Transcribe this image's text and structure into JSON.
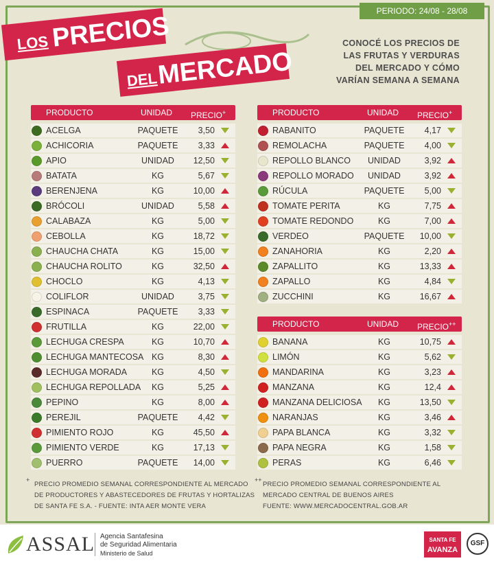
{
  "header": {
    "period": "PERIODO: 24/08 - 28/08",
    "title": [
      "LOS",
      "PRECIOS",
      "DEL",
      "MERCADO"
    ],
    "subtitle": [
      "CONOCÉ LOS PRECIOS DE",
      "LAS FRUTAS Y VERDURAS",
      "DEL MERCADO Y CÓMO",
      "VARÍAN SEMANA A SEMANA"
    ]
  },
  "tables": [
    {
      "columns": [
        "PRODUCTO",
        "UNIDAD",
        "PRECIO"
      ],
      "note_mark": "+",
      "rows": [
        {
          "product": "ACELGA",
          "unit": "PAQUETE",
          "price": "3,50",
          "trend": "down",
          "color": "#3d6b22"
        },
        {
          "product": "ACHICORIA",
          "unit": "PAQUETE",
          "price": "3,33",
          "trend": "up",
          "color": "#7bb03a"
        },
        {
          "product": "APIO",
          "unit": "UNIDAD",
          "price": "12,50",
          "trend": "down",
          "color": "#5a9a2a"
        },
        {
          "product": "BATATA",
          "unit": "KG",
          "price": "5,67",
          "trend": "down",
          "color": "#b87a78"
        },
        {
          "product": "BERENJENA",
          "unit": "KG",
          "price": "10,00",
          "trend": "up",
          "color": "#5b3a7e"
        },
        {
          "product": "BRÓCOLI",
          "unit": "UNIDAD",
          "price": "5,58",
          "trend": "up",
          "color": "#3a6a24"
        },
        {
          "product": "CALABAZA",
          "unit": "KG",
          "price": "5,00",
          "trend": "down",
          "color": "#e8a030"
        },
        {
          "product": "CEBOLLA",
          "unit": "KG",
          "price": "18,72",
          "trend": "down",
          "color": "#f0a070"
        },
        {
          "product": "CHAUCHA CHATA",
          "unit": "KG",
          "price": "15,00",
          "trend": "down",
          "color": "#8ab050"
        },
        {
          "product": "CHAUCHA ROLITO",
          "unit": "KG",
          "price": "32,50",
          "trend": "up",
          "color": "#8ab050"
        },
        {
          "product": "CHOCLO",
          "unit": "KG",
          "price": "4,13",
          "trend": "down",
          "color": "#e0c030"
        },
        {
          "product": "COLIFLOR",
          "unit": "UNIDAD",
          "price": "3,75",
          "trend": "down",
          "color": "#f7f3e6"
        },
        {
          "product": "ESPINACA",
          "unit": "PAQUETE",
          "price": "3,33",
          "trend": "down",
          "color": "#3a6a2a"
        },
        {
          "product": "FRUTILLA",
          "unit": "KG",
          "price": "22,00",
          "trend": "down",
          "color": "#d03030"
        },
        {
          "product": "LECHUGA CRESPA",
          "unit": "KG",
          "price": "10,70",
          "trend": "up",
          "color": "#5a9a3a"
        },
        {
          "product": "LECHUGA MANTECOSA",
          "unit": "KG",
          "price": "8,30",
          "trend": "up",
          "color": "#4e8e30"
        },
        {
          "product": "LECHUGA MORADA",
          "unit": "KG",
          "price": "4,50",
          "trend": "down",
          "color": "#5a2a2a"
        },
        {
          "product": "LECHUGA REPOLLADA",
          "unit": "KG",
          "price": "5,25",
          "trend": "up",
          "color": "#a0c060"
        },
        {
          "product": "PEPINO",
          "unit": "KG",
          "price": "8,00",
          "trend": "up",
          "color": "#4a8a3a"
        },
        {
          "product": "PEREJIL",
          "unit": "PAQUETE",
          "price": "4,42",
          "trend": "down",
          "color": "#3a7a2a"
        },
        {
          "product": "PIMIENTO ROJO",
          "unit": "KG",
          "price": "45,50",
          "trend": "up",
          "color": "#d03030"
        },
        {
          "product": "PIMIENTO VERDE",
          "unit": "KG",
          "price": "17,13",
          "trend": "down",
          "color": "#5a9a3a"
        },
        {
          "product": "PUERRO",
          "unit": "PAQUETE",
          "price": "14,00",
          "trend": "down",
          "color": "#a0c070"
        }
      ]
    },
    {
      "columns": [
        "PRODUCTO",
        "UNIDAD",
        "PRECIO"
      ],
      "note_mark": "+",
      "rows": [
        {
          "product": "RABANITO",
          "unit": "PAQUETE",
          "price": "4,17",
          "trend": "down",
          "color": "#c02030"
        },
        {
          "product": "REMOLACHA",
          "unit": "PAQUETE",
          "price": "4,00",
          "trend": "down",
          "color": "#b05050"
        },
        {
          "product": "REPOLLO BLANCO",
          "unit": "UNIDAD",
          "price": "3,92",
          "trend": "up",
          "color": "#e8e6cc"
        },
        {
          "product": "REPOLLO MORADO",
          "unit": "UNIDAD",
          "price": "3,92",
          "trend": "up",
          "color": "#8a3a7a"
        },
        {
          "product": "RÚCULA",
          "unit": "PAQUETE",
          "price": "5,00",
          "trend": "down",
          "color": "#5a9a3a"
        },
        {
          "product": "TOMATE PERITA",
          "unit": "KG",
          "price": "7,75",
          "trend": "up",
          "color": "#c03020"
        },
        {
          "product": "TOMATE REDONDO",
          "unit": "KG",
          "price": "7,00",
          "trend": "up",
          "color": "#e04020"
        },
        {
          "product": "VERDEO",
          "unit": "PAQUETE",
          "price": "10,00",
          "trend": "down",
          "color": "#3a6a2a"
        },
        {
          "product": "ZANAHORIA",
          "unit": "KG",
          "price": "2,20",
          "trend": "up",
          "color": "#f08020"
        },
        {
          "product": "ZAPALLITO",
          "unit": "KG",
          "price": "13,33",
          "trend": "up",
          "color": "#5a8a2a"
        },
        {
          "product": "ZAPALLO",
          "unit": "KG",
          "price": "4,84",
          "trend": "down",
          "color": "#f08020"
        },
        {
          "product": "ZUCCHINI",
          "unit": "KG",
          "price": "16,67",
          "trend": "up",
          "color": "#a0b080"
        }
      ]
    },
    {
      "columns": [
        "PRODUCTO",
        "UNIDAD",
        "PRECIO"
      ],
      "note_mark": "++",
      "rows": [
        {
          "product": "BANANA",
          "unit": "KG",
          "price": "10,75",
          "trend": "up",
          "color": "#e0d030"
        },
        {
          "product": "LIMÓN",
          "unit": "KG",
          "price": "5,62",
          "trend": "down",
          "color": "#d0e040"
        },
        {
          "product": "MANDARINA",
          "unit": "KG",
          "price": "3,23",
          "trend": "up",
          "color": "#f07010"
        },
        {
          "product": "MANZANA",
          "unit": "KG",
          "price": "12,4",
          "trend": "up",
          "color": "#d02020"
        },
        {
          "product": "MANZANA DELICIOSA",
          "unit": "KG",
          "price": "13,50",
          "trend": "down",
          "color": "#d02020"
        },
        {
          "product": "NARANJAS",
          "unit": "KG",
          "price": "3,46",
          "trend": "up",
          "color": "#f09010"
        },
        {
          "product": "PAPA BLANCA",
          "unit": "KG",
          "price": "3,32",
          "trend": "down",
          "color": "#f0d090"
        },
        {
          "product": "PAPA NEGRA",
          "unit": "KG",
          "price": "1,58",
          "trend": "down",
          "color": "#8a6a4a"
        },
        {
          "product": "PERAS",
          "unit": "KG",
          "price": "6,46",
          "trend": "down",
          "color": "#b0c040"
        }
      ]
    }
  ],
  "notes": [
    {
      "mark": "+",
      "lines": [
        "PRECIO PROMEDIO SEMANAL CORRESPONDIENTE AL MERCADO",
        "DE PRODUCTORES Y ABASTECEDORES DE FRUTAS Y HORTALIZAS",
        "DE SANTA FE S.A. - FUENTE: INTA AER MONTE VERA"
      ]
    },
    {
      "mark": "++",
      "lines": [
        "PRECIO PROMEDIO SEMANAL CORRESPONDIENTE AL",
        "MERCADO CENTRAL DE BUENOS AIRES",
        "FUENTE: WWW.MERCADOCENTRAL.GOB.AR"
      ]
    }
  ],
  "footer": {
    "logo": "ASSAL",
    "agency": [
      "Agencia Santafesina",
      "de Seguridad Alimentaria",
      "Ministerio de Salud"
    ],
    "brand": [
      "SANTA FE",
      "AVANZA"
    ],
    "seal": "GSF"
  }
}
